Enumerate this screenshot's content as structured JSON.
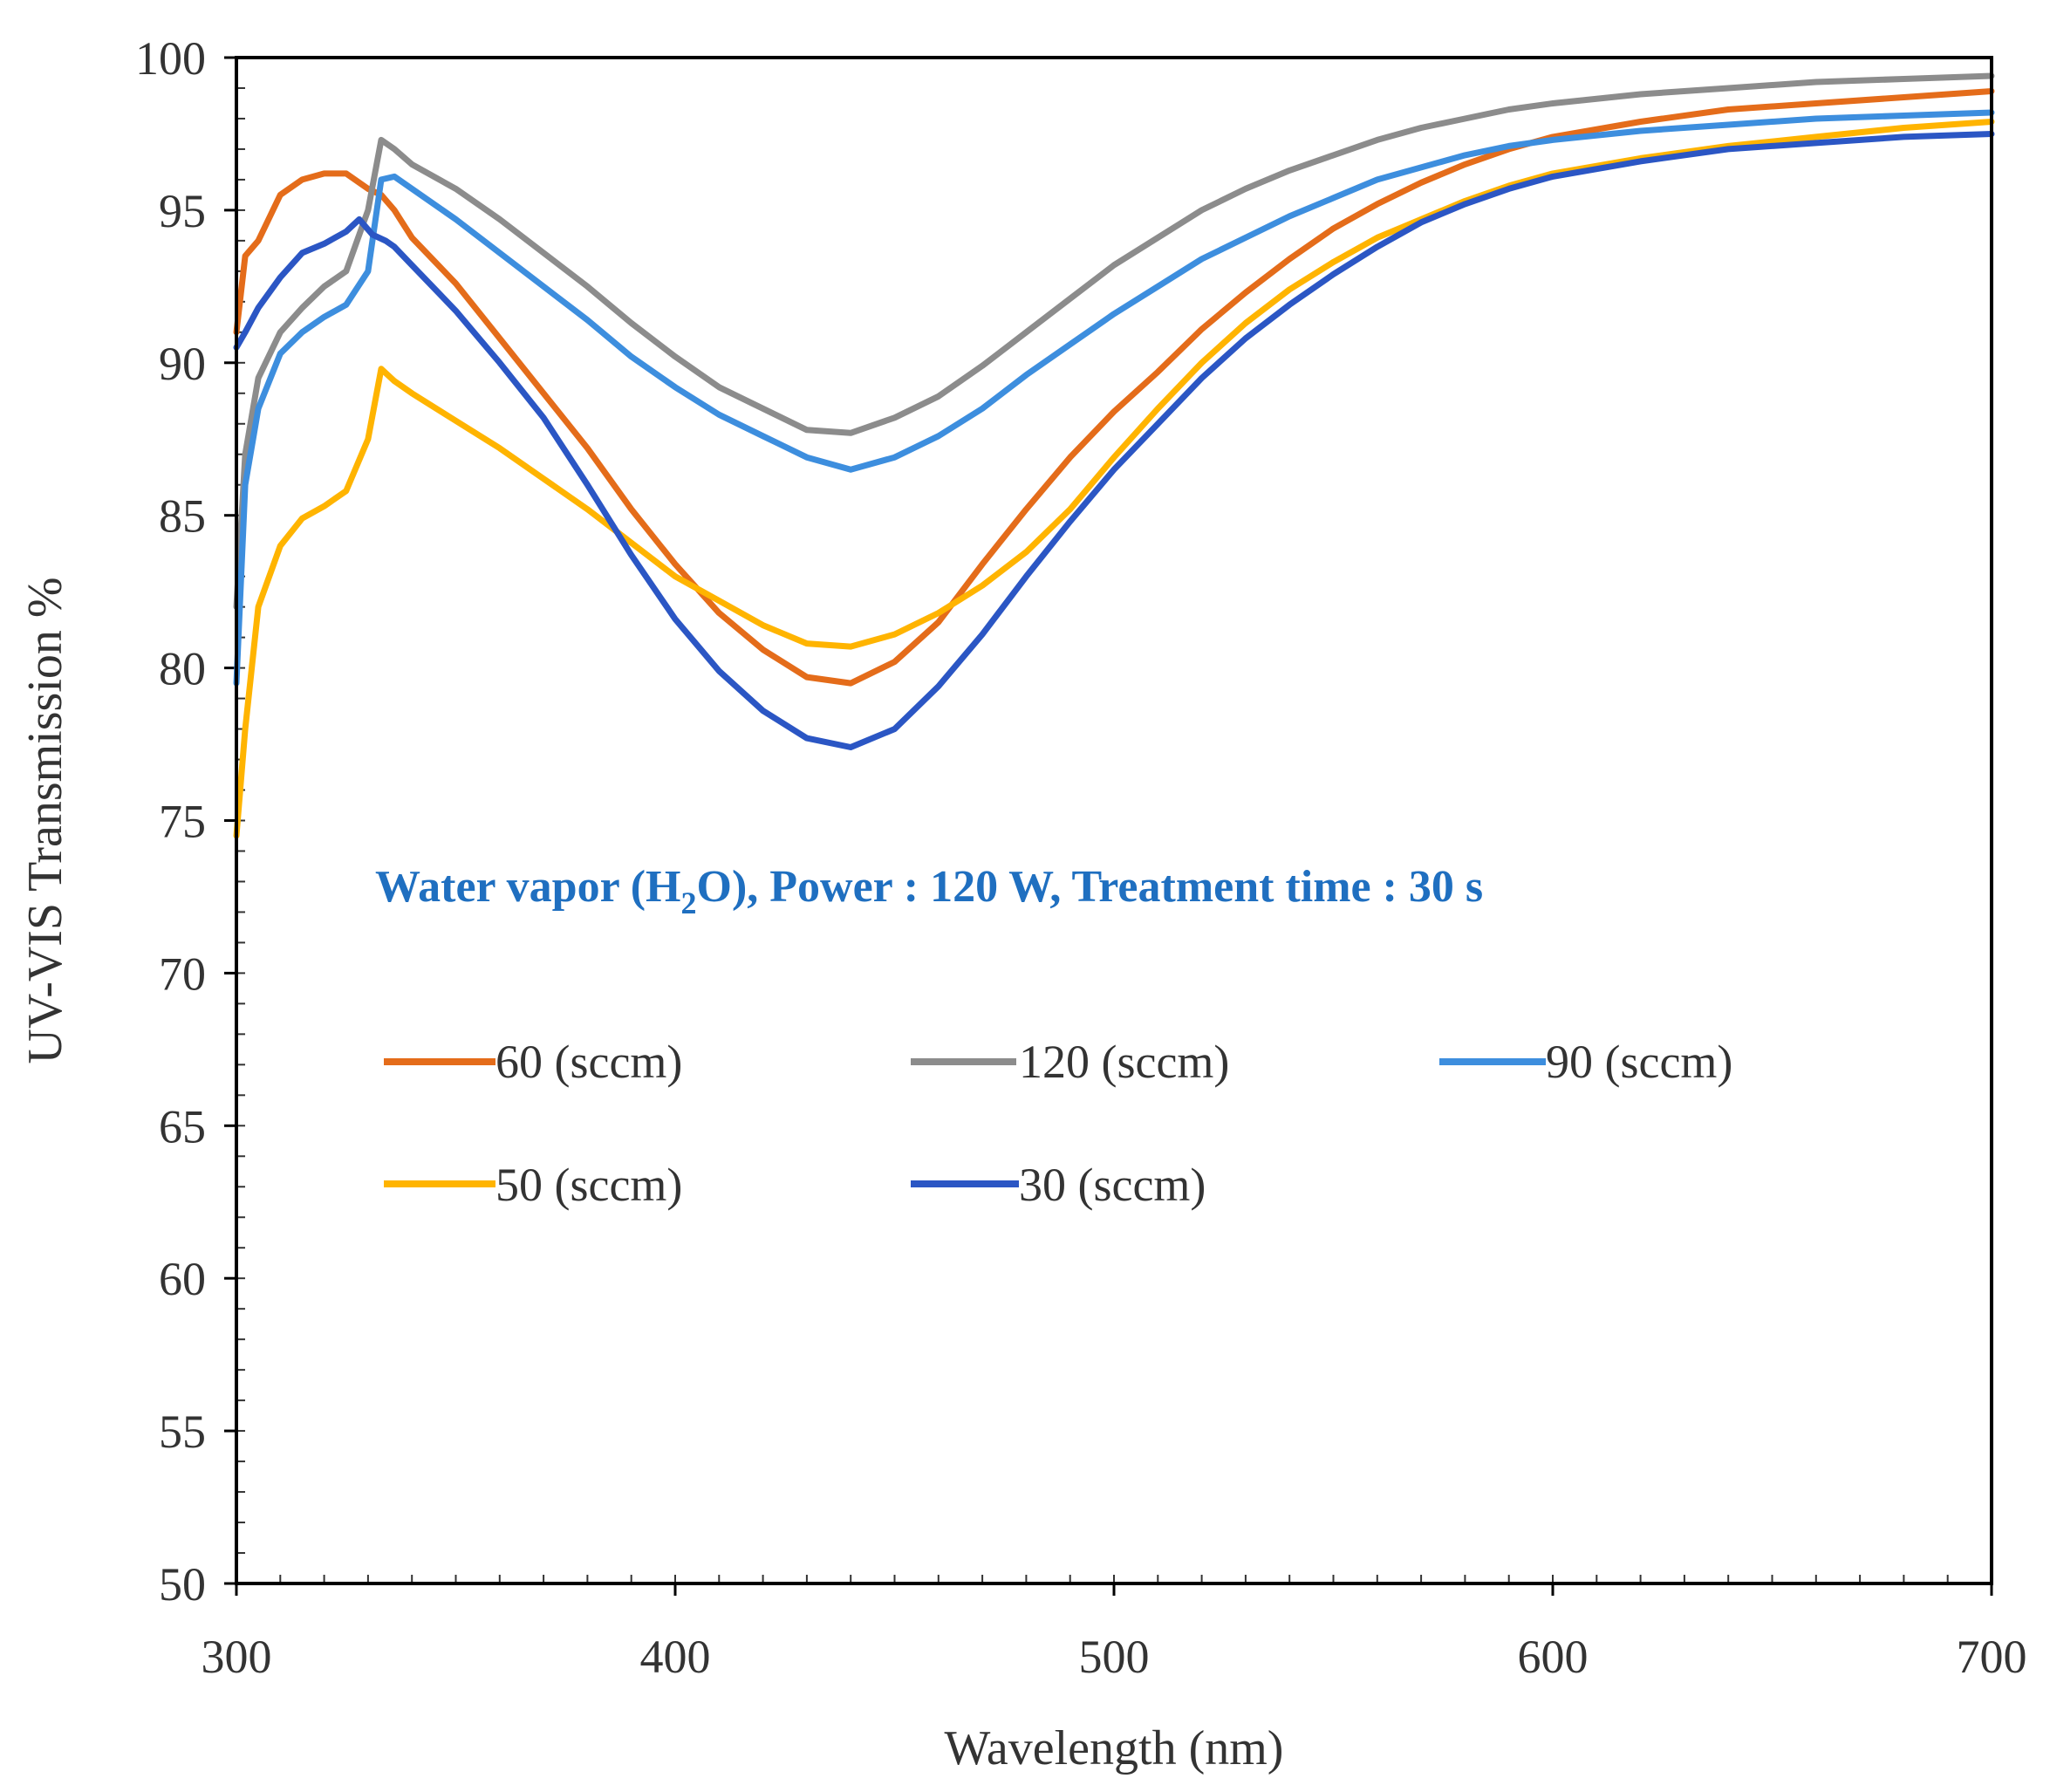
{
  "chart_data": {
    "type": "line",
    "title": "",
    "xlabel": "Wavelength (nm)",
    "ylabel": "UV-VIS Transmission %",
    "xlim": [
      300,
      700
    ],
    "ylim": [
      50,
      100
    ],
    "x_ticks": [
      "300",
      "400",
      "500",
      "600",
      "700"
    ],
    "y_ticks": [
      "50",
      "55",
      "60",
      "65",
      "70",
      "75",
      "80",
      "85",
      "90",
      "95",
      "100"
    ],
    "grid": false,
    "legend_position": "center-left, inside plot",
    "annotation": {
      "before": "Water vapor (H",
      "subscript": "2",
      "after": "O), Power : 120 W, Treatment time : 30 s",
      "color": "#1f6fc0"
    },
    "series": [
      {
        "name": "60 (sccm)",
        "color": "#e46c1a",
        "points": [
          [
            300,
            91
          ],
          [
            302,
            93.5
          ],
          [
            305,
            94
          ],
          [
            310,
            95.5
          ],
          [
            315,
            96
          ],
          [
            320,
            96.2
          ],
          [
            325,
            96.2
          ],
          [
            330,
            95.7
          ],
          [
            333,
            95.5
          ],
          [
            336,
            95
          ],
          [
            340,
            94.1
          ],
          [
            350,
            92.6
          ],
          [
            360,
            90.8
          ],
          [
            370,
            89
          ],
          [
            380,
            87.2
          ],
          [
            390,
            85.2
          ],
          [
            400,
            83.4
          ],
          [
            410,
            81.8
          ],
          [
            420,
            80.6
          ],
          [
            430,
            79.7
          ],
          [
            440,
            79.5
          ],
          [
            450,
            80.2
          ],
          [
            460,
            81.5
          ],
          [
            470,
            83.4
          ],
          [
            480,
            85.2
          ],
          [
            490,
            86.9
          ],
          [
            500,
            88.4
          ],
          [
            510,
            89.7
          ],
          [
            520,
            91.1
          ],
          [
            530,
            92.3
          ],
          [
            540,
            93.4
          ],
          [
            550,
            94.4
          ],
          [
            560,
            95.2
          ],
          [
            570,
            95.9
          ],
          [
            580,
            96.5
          ],
          [
            590,
            97
          ],
          [
            600,
            97.4
          ],
          [
            620,
            97.9
          ],
          [
            640,
            98.3
          ],
          [
            660,
            98.5
          ],
          [
            680,
            98.7
          ],
          [
            700,
            98.9
          ]
        ]
      },
      {
        "name": "120 (sccm)",
        "color": "#8c8c8c",
        "points": [
          [
            300,
            82
          ],
          [
            302,
            87
          ],
          [
            305,
            89.5
          ],
          [
            310,
            91
          ],
          [
            315,
            91.8
          ],
          [
            320,
            92.5
          ],
          [
            325,
            93
          ],
          [
            330,
            95
          ],
          [
            333,
            97.3
          ],
          [
            336,
            97
          ],
          [
            340,
            96.5
          ],
          [
            350,
            95.7
          ],
          [
            360,
            94.7
          ],
          [
            370,
            93.6
          ],
          [
            380,
            92.5
          ],
          [
            390,
            91.3
          ],
          [
            400,
            90.2
          ],
          [
            410,
            89.2
          ],
          [
            420,
            88.5
          ],
          [
            430,
            87.8
          ],
          [
            440,
            87.7
          ],
          [
            450,
            88.2
          ],
          [
            460,
            88.9
          ],
          [
            470,
            89.9
          ],
          [
            480,
            91
          ],
          [
            490,
            92.1
          ],
          [
            500,
            93.2
          ],
          [
            510,
            94.1
          ],
          [
            520,
            95
          ],
          [
            530,
            95.7
          ],
          [
            540,
            96.3
          ],
          [
            550,
            96.8
          ],
          [
            560,
            97.3
          ],
          [
            570,
            97.7
          ],
          [
            580,
            98
          ],
          [
            590,
            98.3
          ],
          [
            600,
            98.5
          ],
          [
            620,
            98.8
          ],
          [
            640,
            99
          ],
          [
            660,
            99.2
          ],
          [
            680,
            99.3
          ],
          [
            700,
            99.4
          ]
        ]
      },
      {
        "name": "90 (sccm)",
        "color": "#3d8ede",
        "points": [
          [
            300,
            79.5
          ],
          [
            302,
            86
          ],
          [
            305,
            88.5
          ],
          [
            310,
            90.3
          ],
          [
            315,
            91
          ],
          [
            320,
            91.5
          ],
          [
            325,
            91.9
          ],
          [
            330,
            93
          ],
          [
            333,
            96
          ],
          [
            336,
            96.1
          ],
          [
            340,
            95.7
          ],
          [
            350,
            94.7
          ],
          [
            360,
            93.6
          ],
          [
            370,
            92.5
          ],
          [
            380,
            91.4
          ],
          [
            390,
            90.2
          ],
          [
            400,
            89.2
          ],
          [
            410,
            88.3
          ],
          [
            420,
            87.6
          ],
          [
            430,
            86.9
          ],
          [
            440,
            86.5
          ],
          [
            450,
            86.9
          ],
          [
            460,
            87.6
          ],
          [
            470,
            88.5
          ],
          [
            480,
            89.6
          ],
          [
            490,
            90.6
          ],
          [
            500,
            91.6
          ],
          [
            510,
            92.5
          ],
          [
            520,
            93.4
          ],
          [
            530,
            94.1
          ],
          [
            540,
            94.8
          ],
          [
            550,
            95.4
          ],
          [
            560,
            96
          ],
          [
            570,
            96.4
          ],
          [
            580,
            96.8
          ],
          [
            590,
            97.1
          ],
          [
            600,
            97.3
          ],
          [
            620,
            97.6
          ],
          [
            640,
            97.8
          ],
          [
            660,
            98
          ],
          [
            680,
            98.1
          ],
          [
            700,
            98.2
          ]
        ]
      },
      {
        "name": "50 (sccm)",
        "color": "#ffb400",
        "points": [
          [
            300,
            74.5
          ],
          [
            302,
            78
          ],
          [
            305,
            82
          ],
          [
            310,
            84
          ],
          [
            315,
            84.9
          ],
          [
            320,
            85.3
          ],
          [
            325,
            85.8
          ],
          [
            330,
            87.5
          ],
          [
            333,
            89.8
          ],
          [
            336,
            89.4
          ],
          [
            340,
            89
          ],
          [
            350,
            88.1
          ],
          [
            360,
            87.2
          ],
          [
            370,
            86.2
          ],
          [
            380,
            85.2
          ],
          [
            390,
            84.1
          ],
          [
            400,
            83
          ],
          [
            410,
            82.2
          ],
          [
            420,
            81.4
          ],
          [
            430,
            80.8
          ],
          [
            440,
            80.7
          ],
          [
            450,
            81.1
          ],
          [
            460,
            81.8
          ],
          [
            470,
            82.7
          ],
          [
            480,
            83.8
          ],
          [
            490,
            85.2
          ],
          [
            500,
            86.9
          ],
          [
            510,
            88.5
          ],
          [
            520,
            90
          ],
          [
            530,
            91.3
          ],
          [
            540,
            92.4
          ],
          [
            550,
            93.3
          ],
          [
            560,
            94.1
          ],
          [
            570,
            94.7
          ],
          [
            580,
            95.3
          ],
          [
            590,
            95.8
          ],
          [
            600,
            96.2
          ],
          [
            620,
            96.7
          ],
          [
            640,
            97.1
          ],
          [
            660,
            97.4
          ],
          [
            680,
            97.7
          ],
          [
            700,
            97.9
          ]
        ]
      },
      {
        "name": "30 (sccm)",
        "color": "#2b56c4",
        "points": [
          [
            300,
            90.5
          ],
          [
            302,
            91
          ],
          [
            305,
            91.8
          ],
          [
            310,
            92.8
          ],
          [
            315,
            93.6
          ],
          [
            320,
            93.9
          ],
          [
            325,
            94.3
          ],
          [
            328,
            94.7
          ],
          [
            331,
            94.2
          ],
          [
            334,
            94
          ],
          [
            336,
            93.8
          ],
          [
            340,
            93.2
          ],
          [
            350,
            91.7
          ],
          [
            360,
            90
          ],
          [
            370,
            88.2
          ],
          [
            380,
            86
          ],
          [
            390,
            83.7
          ],
          [
            400,
            81.6
          ],
          [
            410,
            79.9
          ],
          [
            420,
            78.6
          ],
          [
            430,
            77.7
          ],
          [
            440,
            77.4
          ],
          [
            450,
            78
          ],
          [
            460,
            79.4
          ],
          [
            470,
            81.1
          ],
          [
            480,
            83
          ],
          [
            490,
            84.8
          ],
          [
            500,
            86.5
          ],
          [
            510,
            88
          ],
          [
            520,
            89.5
          ],
          [
            530,
            90.8
          ],
          [
            540,
            91.9
          ],
          [
            550,
            92.9
          ],
          [
            560,
            93.8
          ],
          [
            570,
            94.6
          ],
          [
            580,
            95.2
          ],
          [
            590,
            95.7
          ],
          [
            600,
            96.1
          ],
          [
            620,
            96.6
          ],
          [
            640,
            97
          ],
          [
            660,
            97.2
          ],
          [
            680,
            97.4
          ],
          [
            700,
            97.5
          ]
        ]
      }
    ]
  }
}
